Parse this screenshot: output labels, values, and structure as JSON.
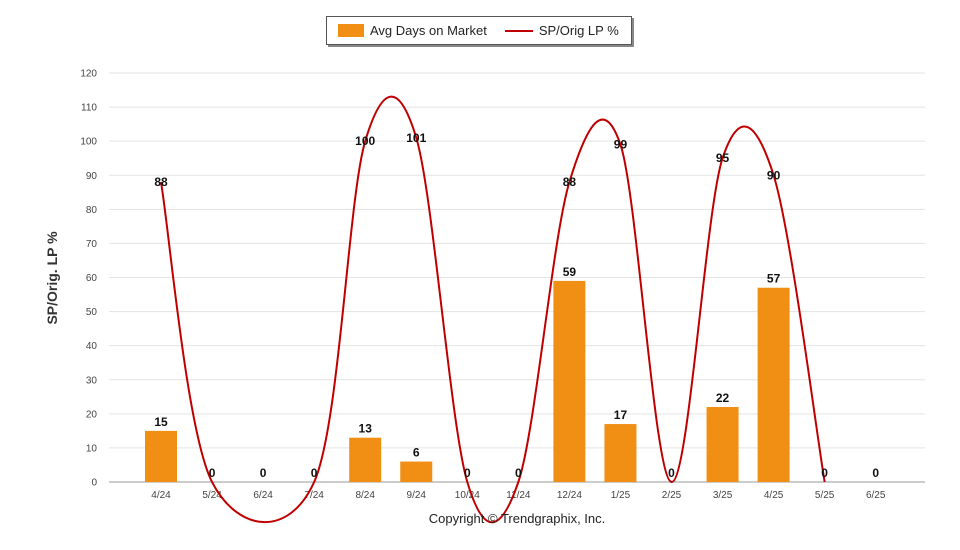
{
  "chart_data": {
    "type": "bar",
    "categories": [
      "4/24",
      "5/24",
      "6/24",
      "7/24",
      "8/24",
      "9/24",
      "10/24",
      "11/24",
      "12/24",
      "1/25",
      "2/25",
      "3/25",
      "4/25",
      "5/25",
      "6/25"
    ],
    "series": [
      {
        "name": "Avg Days on Market",
        "kind": "bar",
        "color": "#F18E14",
        "values": [
          15,
          0,
          0,
          0,
          13,
          6,
          0,
          0,
          59,
          17,
          0,
          22,
          57,
          0,
          0
        ]
      },
      {
        "name": "SP/Orig LP %",
        "kind": "line",
        "color": "#C00000",
        "values": [
          88,
          0,
          null,
          0,
          100,
          101,
          0,
          0,
          88,
          99,
          0,
          95,
          90,
          0,
          null
        ]
      }
    ],
    "ylabel": "SP/Orig. LP %",
    "ylim": [
      0,
      120
    ],
    "yticks": [
      0,
      10,
      20,
      30,
      40,
      50,
      60,
      70,
      80,
      90,
      100,
      110,
      120
    ],
    "grid": true,
    "legend_position": "top-center"
  },
  "footer": {
    "copyright": "Copyright © Trendgraphix, Inc."
  }
}
